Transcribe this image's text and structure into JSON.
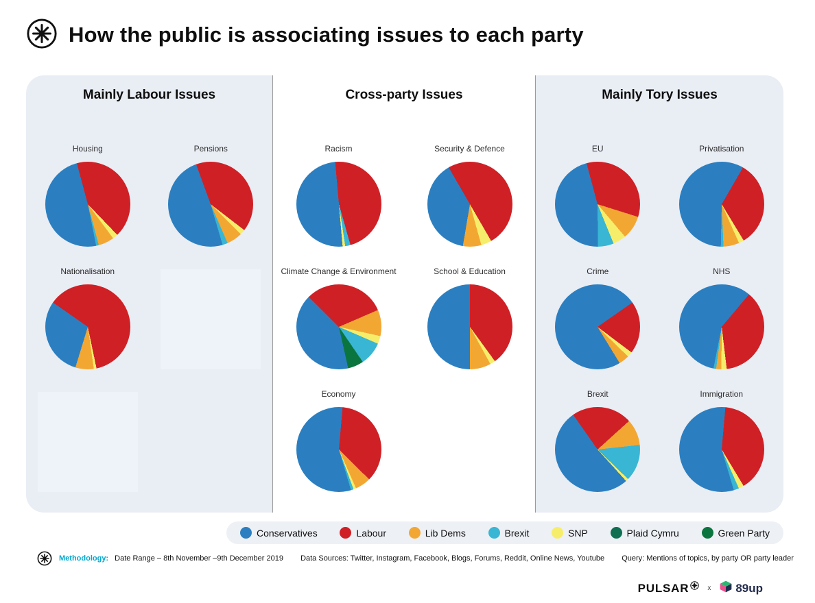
{
  "header": {
    "title": "How the public is associating issues to each party"
  },
  "panels": [
    {
      "title": "Mainly Labour Issues"
    },
    {
      "title": "Cross-party Issues"
    },
    {
      "title": "Mainly Tory Issues"
    }
  ],
  "party_colors": {
    "Conservatives": "#2b7fc0",
    "Labour": "#cf2026",
    "Lib Dems": "#f3a733",
    "Brexit": "#38b6d4",
    "SNP": "#f6ee6a",
    "Plaid Cymru": "#0e6f51",
    "Green Party": "#0b7540"
  },
  "legend": {
    "items": [
      "Conservatives",
      "Labour",
      "Lib Dems",
      "Brexit",
      "SNP",
      "Plaid Cymru",
      "Green Party"
    ]
  },
  "chart_data": [
    {
      "type": "pie",
      "title": "Housing",
      "panel": "Mainly Labour Issues",
      "start_angle": -15,
      "slices": [
        {
          "party": "Labour",
          "value": 42
        },
        {
          "party": "SNP",
          "value": 2
        },
        {
          "party": "Lib Dems",
          "value": 6
        },
        {
          "party": "Brexit",
          "value": 1
        },
        {
          "party": "Conservatives",
          "value": 49
        }
      ]
    },
    {
      "type": "pie",
      "title": "Pensions",
      "panel": "Mainly Labour Issues",
      "start_angle": -20,
      "slices": [
        {
          "party": "Labour",
          "value": 41
        },
        {
          "party": "SNP",
          "value": 2
        },
        {
          "party": "Lib Dems",
          "value": 6
        },
        {
          "party": "Brexit",
          "value": 2
        },
        {
          "party": "Conservatives",
          "value": 49
        }
      ]
    },
    {
      "type": "pie",
      "title": "Nationalisation",
      "panel": "Mainly Labour Issues",
      "start_angle": -55,
      "slices": [
        {
          "party": "Labour",
          "value": 62
        },
        {
          "party": "SNP",
          "value": 1
        },
        {
          "party": "Lib Dems",
          "value": 7
        },
        {
          "party": "Conservatives",
          "value": 30
        }
      ]
    },
    {
      "type": "pie",
      "title": "Racism",
      "panel": "Cross-party Issues",
      "start_angle": -5,
      "slices": [
        {
          "party": "Labour",
          "value": 47
        },
        {
          "party": "Brexit",
          "value": 2
        },
        {
          "party": "SNP",
          "value": 1
        },
        {
          "party": "Conservatives",
          "value": 50
        }
      ]
    },
    {
      "type": "pie",
      "title": "Security & Defence",
      "panel": "Cross-party Issues",
      "start_angle": -30,
      "slices": [
        {
          "party": "Labour",
          "value": 50
        },
        {
          "party": "SNP",
          "value": 4
        },
        {
          "party": "Lib Dems",
          "value": 7
        },
        {
          "party": "Conservatives",
          "value": 39
        }
      ]
    },
    {
      "type": "pie",
      "title": "Climate Change & Environment",
      "panel": "Cross-party Issues",
      "start_angle": -45,
      "slices": [
        {
          "party": "Labour",
          "value": 31
        },
        {
          "party": "Lib Dems",
          "value": 10
        },
        {
          "party": "SNP",
          "value": 3
        },
        {
          "party": "Brexit",
          "value": 9
        },
        {
          "party": "Green Party",
          "value": 6
        },
        {
          "party": "Conservatives",
          "value": 41
        }
      ]
    },
    {
      "type": "pie",
      "title": "School & Education",
      "panel": "Cross-party Issues",
      "start_angle": 0,
      "slices": [
        {
          "party": "Labour",
          "value": 40
        },
        {
          "party": "SNP",
          "value": 2
        },
        {
          "party": "Lib Dems",
          "value": 8
        },
        {
          "party": "Conservatives",
          "value": 50
        }
      ]
    },
    {
      "type": "pie",
      "title": "Economy",
      "panel": "Cross-party Issues",
      "start_angle": 5,
      "slices": [
        {
          "party": "Labour",
          "value": 36
        },
        {
          "party": "Lib Dems",
          "value": 6
        },
        {
          "party": "SNP",
          "value": 1
        },
        {
          "party": "Brexit",
          "value": 1
        },
        {
          "party": "Conservatives",
          "value": 56
        }
      ]
    },
    {
      "type": "pie",
      "title": "EU",
      "panel": "Mainly Tory Issues",
      "start_angle": -15,
      "slices": [
        {
          "party": "Labour",
          "value": 34
        },
        {
          "party": "Lib Dems",
          "value": 9
        },
        {
          "party": "SNP",
          "value": 5
        },
        {
          "party": "Brexit",
          "value": 6
        },
        {
          "party": "Conservatives",
          "value": 46
        }
      ]
    },
    {
      "type": "pie",
      "title": "Privatisation",
      "panel": "Mainly Tory Issues",
      "start_angle": 30,
      "slices": [
        {
          "party": "Labour",
          "value": 33
        },
        {
          "party": "SNP",
          "value": 2
        },
        {
          "party": "Lib Dems",
          "value": 6
        },
        {
          "party": "Brexit",
          "value": 1
        },
        {
          "party": "Conservatives",
          "value": 58
        }
      ]
    },
    {
      "type": "pie",
      "title": "Crime",
      "panel": "Mainly Tory Issues",
      "start_angle": 55,
      "slices": [
        {
          "party": "Labour",
          "value": 20
        },
        {
          "party": "SNP",
          "value": 2
        },
        {
          "party": "Lib Dems",
          "value": 4
        },
        {
          "party": "Conservatives",
          "value": 74
        }
      ]
    },
    {
      "type": "pie",
      "title": "NHS",
      "panel": "Mainly Tory Issues",
      "start_angle": 40,
      "slices": [
        {
          "party": "Labour",
          "value": 37
        },
        {
          "party": "SNP",
          "value": 2
        },
        {
          "party": "Lib Dems",
          "value": 2
        },
        {
          "party": "Brexit",
          "value": 1
        },
        {
          "party": "Conservatives",
          "value": 58
        }
      ]
    },
    {
      "type": "pie",
      "title": "Brexit",
      "panel": "Mainly Tory Issues",
      "start_angle": -35,
      "slices": [
        {
          "party": "Labour",
          "value": 23
        },
        {
          "party": "Lib Dems",
          "value": 10
        },
        {
          "party": "Brexit",
          "value": 14
        },
        {
          "party": "SNP",
          "value": 1
        },
        {
          "party": "Conservatives",
          "value": 52
        }
      ]
    },
    {
      "type": "pie",
      "title": "Immigration",
      "panel": "Mainly Tory Issues",
      "start_angle": 5,
      "slices": [
        {
          "party": "Labour",
          "value": 40
        },
        {
          "party": "SNP",
          "value": 2
        },
        {
          "party": "Brexit",
          "value": 2
        },
        {
          "party": "Conservatives",
          "value": 56
        }
      ]
    }
  ],
  "methodology": {
    "label": "Methodology:",
    "date_range": "Date Range – 8th November –9th December 2019",
    "data_sources": "Data Sources: Twitter, Instagram, Facebook, Blogs, Forums, Reddit, Online News, Youtube",
    "query": "Query: Mentions of topics, by party OR party leader"
  },
  "footer": {
    "pulsar": "PULSAR",
    "separator": "x",
    "partner": "89up"
  }
}
